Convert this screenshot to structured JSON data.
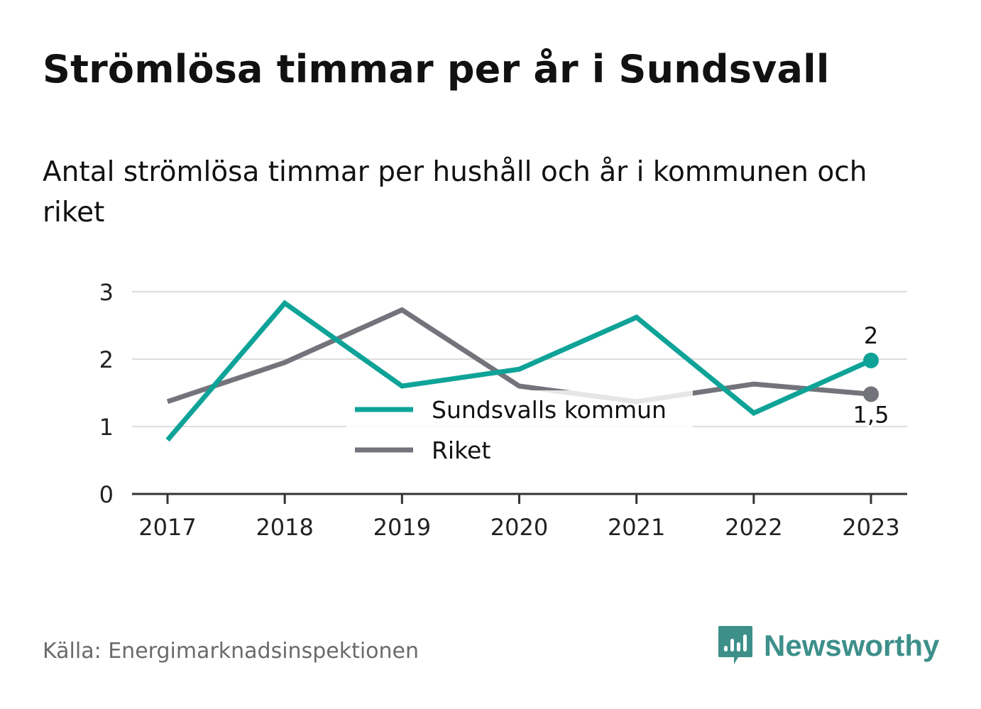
{
  "title": "Strömlösa timmar per år i Sundsvall",
  "subtitle": "Antal strömlösa timmar per hushåll och år i kommunen och riket",
  "source": "Källa: Energimarknadsinspektionen",
  "brand": {
    "name": "Newsworthy",
    "icon": "newsworthy-logo-icon",
    "color": "#3d8f8a"
  },
  "chart_data": {
    "type": "line",
    "x": [
      "2017",
      "2018",
      "2019",
      "2020",
      "2021",
      "2022",
      "2023"
    ],
    "yticks": [
      "0",
      "1",
      "2",
      "3"
    ],
    "ylim": [
      0,
      3
    ],
    "grid": true,
    "legend": "center",
    "series": [
      {
        "name": "Sundsvalls kommun",
        "color": "#0fa398",
        "values": [
          0.8,
          2.83,
          1.6,
          1.85,
          2.62,
          1.2,
          1.98
        ],
        "end_label": "2"
      },
      {
        "name": "Riket",
        "color": "#73737b",
        "values": [
          1.37,
          1.95,
          2.73,
          1.6,
          1.37,
          1.63,
          1.48
        ],
        "end_label": "1,5"
      }
    ]
  }
}
